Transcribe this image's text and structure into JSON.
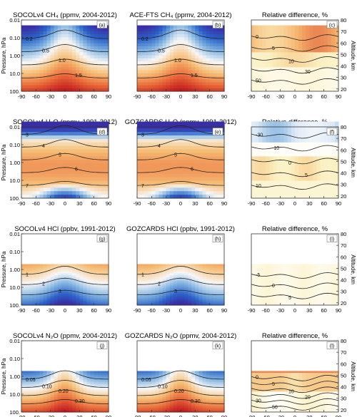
{
  "chart_data": {
    "type": "heatmap",
    "layout": {
      "rows": 4,
      "columns": 3
    },
    "x_ticks": [
      -90,
      -60,
      -30,
      0,
      30,
      60,
      90
    ],
    "x_range": [
      -90,
      90
    ],
    "pressure_axis": {
      "label": "Pressure, hPa",
      "ticks": [
        "0.01",
        "0.10",
        "1.00",
        "10.0",
        "100."
      ],
      "scale": "log",
      "range_hpa": [
        0.01,
        100
      ]
    },
    "altitude_axis": {
      "label": "Altitude, km",
      "ticks": [
        20,
        30,
        40,
        50,
        60,
        70,
        80
      ],
      "range_km": [
        18,
        80
      ]
    },
    "palettes": {
      "sequential": [
        "#3a2ea8",
        "#2c63c8",
        "#7fb2e0",
        "#f7f7f7",
        "#f6c078",
        "#ea6f3b",
        "#c0131c"
      ],
      "difference": [
        "#5b9bd5",
        "#dbe9f6",
        "#ffffff",
        "#fbf0c0",
        "#f5b26b",
        "#d8402a"
      ]
    },
    "panels": [
      {
        "id": "a",
        "panel_label": "(a)",
        "title": "SOCOLv4 CH₄ (ppmv, 2004-2012)",
        "kind": "ch4",
        "contours": [
          "0.2",
          "0.5",
          "1.0",
          "1.5"
        ],
        "top_hpa": 0.02,
        "bottom_hpa": 100
      },
      {
        "id": "b",
        "panel_label": "(b)",
        "title": "ACE-FTS CH₄ (ppmv, 2004-2012)",
        "kind": "ch4",
        "contours": [
          "0.2",
          "0.5",
          "1.0",
          "1.5"
        ],
        "top_hpa": 0.02,
        "bottom_hpa": 100
      },
      {
        "id": "c",
        "panel_label": "(c)",
        "title": "Relative difference, %",
        "kind": "diff_ch4",
        "contours": [
          "0",
          "5",
          "10",
          "30",
          "50"
        ],
        "top_hpa": 0.02,
        "bottom_hpa": 100
      },
      {
        "id": "d",
        "panel_label": "(d)",
        "title": "SOCOLv4 H₂O (ppmv, 1991-2012)",
        "kind": "h2o",
        "contours": [
          "3",
          "4",
          "5",
          "6",
          "7"
        ],
        "top_hpa": 0.005,
        "bottom_hpa": 100
      },
      {
        "id": "e",
        "panel_label": "(e)",
        "title": "GOZCARDS H₂O (ppmv, 1991-2012)",
        "kind": "h2o",
        "contours": [
          "3",
          "4",
          "5",
          "6",
          "7"
        ],
        "top_hpa": 0.005,
        "bottom_hpa": 100
      },
      {
        "id": "f",
        "panel_label": "(f)",
        "title": "Relative difference, %",
        "kind": "diff_h2o",
        "contours": [
          "-30",
          "-10",
          "0",
          "5",
          "10"
        ],
        "top_hpa": 0.005,
        "bottom_hpa": 100
      },
      {
        "id": "g",
        "panel_label": "(g)",
        "title": "SOCOLv4 HCl (ppbv, 1991-2012)",
        "kind": "hcl",
        "contours": [
          "1",
          "2",
          "3"
        ],
        "top_hpa": 0.5,
        "bottom_hpa": 100
      },
      {
        "id": "h",
        "panel_label": "(h)",
        "title": "GOZCARDS HCl (ppbv, 1991-2012)",
        "kind": "hcl",
        "contours": [
          "1",
          "2",
          "3"
        ],
        "top_hpa": 0.5,
        "bottom_hpa": 100
      },
      {
        "id": "i",
        "panel_label": "(i)",
        "title": "Relative difference, %",
        "kind": "diff_hcl",
        "contours": [
          "-5",
          "0",
          "5"
        ],
        "top_hpa": 0.5,
        "bottom_hpa": 100
      },
      {
        "id": "j",
        "panel_label": "(j)",
        "title": "SOCOLv4 N₂O (ppmv, 2004-2012)",
        "kind": "n2o",
        "contours": [
          "0.05",
          "0.10",
          "0.20",
          "0.30"
        ],
        "top_hpa": 0.5,
        "bottom_hpa": 100
      },
      {
        "id": "k",
        "panel_label": "(k)",
        "title": "GOZCARDS N₂O (ppmv, 2004-2012)",
        "kind": "n2o",
        "contours": [
          "0.05",
          "0.10",
          "0.20",
          "0.30"
        ],
        "top_hpa": 0.5,
        "bottom_hpa": 100
      },
      {
        "id": "l",
        "panel_label": "(l)",
        "title": "Relative difference, %",
        "kind": "diff_n2o",
        "contours": [
          "0",
          "5",
          "10",
          "20",
          "30",
          "50"
        ],
        "top_hpa": 0.5,
        "bottom_hpa": 100
      }
    ]
  }
}
